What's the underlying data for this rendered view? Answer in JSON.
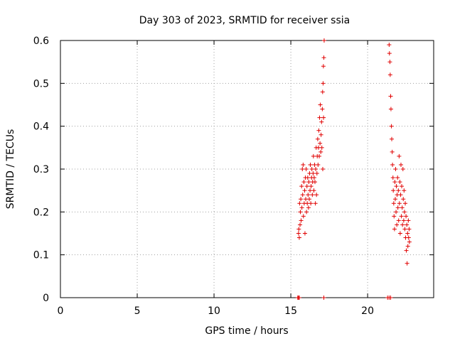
{
  "chart_data": {
    "type": "scatter",
    "title": "Day 303 of 2023, SRMTID for receiver ssia",
    "xlabel": "GPS time / hours",
    "ylabel": "SRMTID / TECUs",
    "xlim": [
      0,
      24.3
    ],
    "ylim": [
      0,
      0.6
    ],
    "x_ticks": [
      0,
      5,
      10,
      15,
      20
    ],
    "x_tick_labels": [
      "0",
      "5",
      "10",
      "15",
      "20"
    ],
    "y_ticks": [
      0,
      0.1,
      0.2,
      0.3,
      0.4,
      0.5,
      0.6
    ],
    "y_tick_labels": [
      "0",
      "0.1",
      "0.2",
      "0.3",
      "0.4",
      "0.5",
      "0.6"
    ],
    "grid": true,
    "marker": "+",
    "color": "#e00000",
    "series": [
      {
        "name": "SRMTID",
        "points": [
          [
            15.45,
            0.0
          ],
          [
            15.5,
            0.0
          ],
          [
            15.55,
            0.0
          ],
          [
            17.15,
            0.0
          ],
          [
            21.3,
            0.0
          ],
          [
            21.4,
            0.0
          ],
          [
            21.5,
            0.0
          ],
          [
            15.5,
            0.15
          ],
          [
            15.52,
            0.16
          ],
          [
            15.55,
            0.14
          ],
          [
            15.57,
            0.22
          ],
          [
            15.6,
            0.17
          ],
          [
            15.62,
            0.2
          ],
          [
            15.65,
            0.23
          ],
          [
            15.67,
            0.18
          ],
          [
            15.7,
            0.26
          ],
          [
            15.72,
            0.21
          ],
          [
            15.75,
            0.3
          ],
          [
            15.77,
            0.24
          ],
          [
            15.8,
            0.31
          ],
          [
            15.82,
            0.19
          ],
          [
            15.85,
            0.27
          ],
          [
            15.87,
            0.22
          ],
          [
            15.9,
            0.25
          ],
          [
            15.92,
            0.15
          ],
          [
            15.95,
            0.28
          ],
          [
            15.97,
            0.23
          ],
          [
            16.0,
            0.3
          ],
          [
            16.02,
            0.2
          ],
          [
            16.05,
            0.26
          ],
          [
            16.07,
            0.22
          ],
          [
            16.1,
            0.28
          ],
          [
            16.12,
            0.24
          ],
          [
            16.15,
            0.21
          ],
          [
            16.17,
            0.27
          ],
          [
            16.2,
            0.23
          ],
          [
            16.22,
            0.29
          ],
          [
            16.25,
            0.25
          ],
          [
            16.27,
            0.31
          ],
          [
            16.3,
            0.22
          ],
          [
            16.32,
            0.26
          ],
          [
            16.35,
            0.28
          ],
          [
            16.37,
            0.3
          ],
          [
            16.4,
            0.24
          ],
          [
            16.42,
            0.27
          ],
          [
            16.45,
            0.29
          ],
          [
            16.47,
            0.33
          ],
          [
            16.5,
            0.25
          ],
          [
            16.52,
            0.28
          ],
          [
            16.55,
            0.31
          ],
          [
            16.57,
            0.27
          ],
          [
            16.6,
            0.22
          ],
          [
            16.62,
            0.3
          ],
          [
            16.65,
            0.35
          ],
          [
            16.67,
            0.24
          ],
          [
            16.7,
            0.29
          ],
          [
            16.72,
            0.33
          ],
          [
            16.75,
            0.37
          ],
          [
            16.77,
            0.31
          ],
          [
            16.8,
            0.35
          ],
          [
            16.82,
            0.39
          ],
          [
            16.85,
            0.33
          ],
          [
            16.87,
            0.42
          ],
          [
            16.9,
            0.36
          ],
          [
            16.92,
            0.45
          ],
          [
            16.95,
            0.34
          ],
          [
            16.97,
            0.38
          ],
          [
            17.0,
            0.41
          ],
          [
            17.02,
            0.35
          ],
          [
            17.05,
            0.44
          ],
          [
            17.07,
            0.48
          ],
          [
            17.1,
            0.5
          ],
          [
            17.12,
            0.54
          ],
          [
            17.15,
            0.56
          ],
          [
            17.17,
            0.6
          ],
          [
            17.13,
            0.42
          ],
          [
            17.08,
            0.3
          ],
          [
            21.4,
            0.59
          ],
          [
            21.42,
            0.57
          ],
          [
            21.45,
            0.55
          ],
          [
            21.47,
            0.52
          ],
          [
            21.5,
            0.47
          ],
          [
            21.52,
            0.44
          ],
          [
            21.55,
            0.4
          ],
          [
            21.57,
            0.37
          ],
          [
            21.6,
            0.34
          ],
          [
            21.62,
            0.31
          ],
          [
            21.65,
            0.28
          ],
          [
            21.67,
            0.25
          ],
          [
            21.7,
            0.22
          ],
          [
            21.72,
            0.19
          ],
          [
            21.75,
            0.16
          ],
          [
            21.77,
            0.27
          ],
          [
            21.8,
            0.23
          ],
          [
            21.82,
            0.3
          ],
          [
            21.85,
            0.2
          ],
          [
            21.87,
            0.26
          ],
          [
            21.9,
            0.17
          ],
          [
            21.92,
            0.24
          ],
          [
            21.95,
            0.28
          ],
          [
            21.97,
            0.21
          ],
          [
            22.0,
            0.25
          ],
          [
            22.02,
            0.18
          ],
          [
            22.05,
            0.33
          ],
          [
            22.07,
            0.22
          ],
          [
            22.1,
            0.27
          ],
          [
            22.12,
            0.15
          ],
          [
            22.15,
            0.24
          ],
          [
            22.17,
            0.31
          ],
          [
            22.2,
            0.19
          ],
          [
            22.22,
            0.26
          ],
          [
            22.25,
            0.21
          ],
          [
            22.27,
            0.17
          ],
          [
            22.3,
            0.3
          ],
          [
            22.32,
            0.23
          ],
          [
            22.35,
            0.18
          ],
          [
            22.37,
            0.25
          ],
          [
            22.4,
            0.2
          ],
          [
            22.42,
            0.16
          ],
          [
            22.45,
            0.22
          ],
          [
            22.47,
            0.14
          ],
          [
            22.5,
            0.19
          ],
          [
            22.52,
            0.11
          ],
          [
            22.55,
            0.17
          ],
          [
            22.57,
            0.08
          ],
          [
            22.6,
            0.15
          ],
          [
            22.62,
            0.12
          ],
          [
            22.65,
            0.18
          ],
          [
            22.67,
            0.14
          ],
          [
            22.7,
            0.16
          ],
          [
            22.72,
            0.13
          ]
        ]
      }
    ]
  }
}
